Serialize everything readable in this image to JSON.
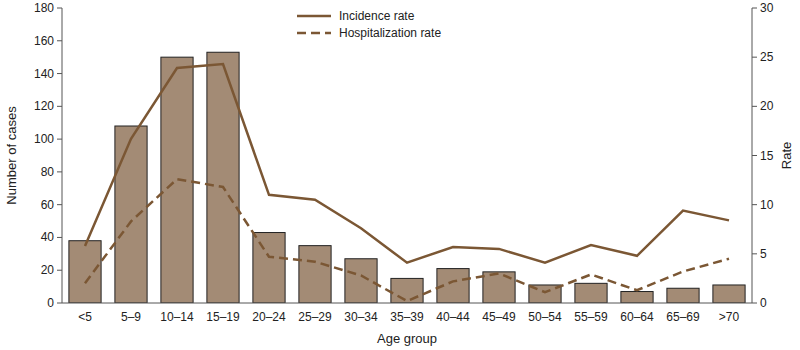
{
  "chart_data": {
    "type": "bar",
    "x_label": "Age group",
    "y_label": "Number of cases",
    "y2_label": "Rate",
    "categories": [
      "<5",
      "5–9",
      "10–14",
      "15–19",
      "20–24",
      "25–29",
      "30–34",
      "35–39",
      "40–44",
      "45–49",
      "50–54",
      "55–59",
      "60–64",
      "65–69",
      ">70"
    ],
    "series": [
      {
        "type": "bar",
        "color": "#a38b75",
        "values": [
          38,
          108,
          150,
          153,
          43,
          35,
          27,
          15,
          21,
          19,
          11,
          12,
          7,
          9,
          11
        ]
      },
      {
        "name": "Incidence rate",
        "type": "line",
        "axis": "y2",
        "color": "#7b5734",
        "line_style": "solid",
        "values": [
          5.8,
          16.7,
          23.9,
          24.3,
          11.0,
          10.5,
          7.6,
          4.1,
          5.7,
          5.5,
          4.1,
          5.9,
          4.8,
          9.4,
          8.4
        ]
      },
      {
        "name": "Hospitalization rate",
        "type": "line",
        "axis": "y2",
        "color": "#7b5734",
        "line_style": "dashed",
        "values": [
          2.0,
          8.3,
          12.6,
          11.8,
          4.7,
          4.2,
          2.8,
          0.2,
          2.2,
          3.0,
          1.1,
          2.9,
          1.3,
          3.2,
          4.5
        ]
      }
    ],
    "ylim": [
      0,
      180
    ],
    "yticks": [
      0,
      20,
      40,
      60,
      80,
      100,
      120,
      140,
      160,
      180
    ],
    "y2lim": [
      0,
      30
    ],
    "y2ticks": [
      0,
      5,
      10,
      15,
      20,
      25,
      30
    ],
    "grid": false,
    "legend": "top"
  }
}
